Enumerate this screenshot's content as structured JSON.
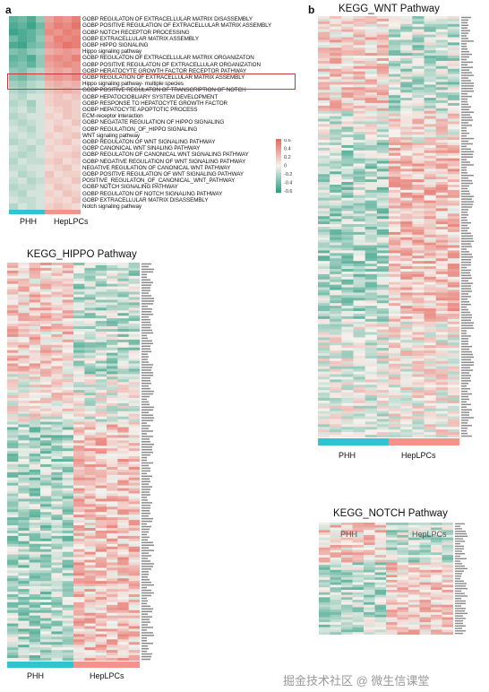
{
  "panel_a_letter": "a",
  "panel_b_letter": "b",
  "watermark": "掘金技术社区 @ 微生信课堂",
  "colors": {
    "low": "#2e9e82",
    "mid": "#f5f2ee",
    "high": "#e5695f",
    "phh": "#2ec4d1",
    "hep": "#f2948a",
    "highlight": "#c23a3a"
  },
  "chart_data": [
    {
      "type": "heatmap",
      "title": "",
      "groups": [
        "PHH",
        "HepLPCs"
      ],
      "colorbar": {
        "ticks": [
          "0.6",
          "0.4",
          "0.2",
          "0",
          "-0.2",
          "-0.4",
          "-0.6"
        ],
        "range": [
          -0.6,
          0.6
        ]
      },
      "highlighted_rows": [
        9,
        10
      ],
      "rows": [
        "GOBP REGULATON OF EXTRACELLULAR MATRIX DISASSEMBLY",
        "GOBP POSITIVE REGULATION OF EXTRACELLULAR MATRIX ASSEMBLY",
        "GOBP NOTCH RECEPTOR PROCESSING",
        "GOBP EXTRACELLULAR MATRIX ASSEMBLY",
        "GOBP HIPPO SIGNALING",
        "Hippo signaling pathway",
        "GOBP REGULATON OF EXTRACELLULAR MATRIX ORGANIZATON",
        "GOBP POSITIVE REGULATON OF EXTRACELLULAR ORGANIZATION",
        "GOBP HERATOCYTE GROWTH FACTOR RECEPTOR PATHWAY",
        "GOBP REGULATION OF EXTRACELLULAR MATRIX ASSEMBLY",
        "Hippo signaling pathway- multiple species",
        "GOBP POSITIVE REGULATON OF TRANSCRIPTION OF NOTCH",
        "GOBP HEPATOCIOBLIARY SYSTEM DEVELOPMENT",
        "GOBP RESPONSE TO HEPATOCYTE GROWTH FACTOR",
        "GOBP HEPATOCYTE APOPTOTIC PROCESS",
        "ECM-receptor interaction",
        "GOBP NEGATATE REGULATION OF HIPPO SIGNALING",
        "GOBP REGULATION_OF_HIPPO SIGNALING",
        "WNT signaling pathway",
        "GOBP REGULATON OF WNT SIGNALING PATHWAY",
        "GOBP CANONICAL WNT SINALING PATHWAY",
        "GOBP REGULATON OF CANONICAL WNT SIGNALING PATHWAY",
        "GOBP NEGATIVE REGULATION OF WNT SIGNALING PATHWAY",
        "NEGATIVE REGULATION OF CANONICAL WNT PATHWAY",
        "GOBP POSITIVE REGULATION OF WNT SIGNALING PATHWAY",
        "POSITIVE_REGULATON_OF_CANONICAL_WNT_PATHWAY",
        "GOBP NOTCH SIGNALING PATHWAY",
        "GOBP REGULATON OF NOTCH SIGNALING PATHWAY",
        "GOBP EXTRACELLULAR MATRIX DISASSEMBLY",
        "Notch signaling pathway"
      ],
      "values": [
        [
          -0.45,
          -0.4,
          -0.5,
          -0.3,
          0.35,
          0.45,
          0.4,
          0.5
        ],
        [
          -0.5,
          -0.45,
          -0.55,
          -0.4,
          0.4,
          0.5,
          0.45,
          0.55
        ],
        [
          -0.55,
          -0.5,
          -0.45,
          -0.35,
          0.45,
          0.4,
          0.5,
          0.45
        ],
        [
          -0.4,
          -0.5,
          -0.45,
          -0.3,
          0.35,
          0.5,
          0.45,
          0.5
        ],
        [
          -0.5,
          -0.55,
          -0.4,
          -0.35,
          0.4,
          0.45,
          0.55,
          0.5
        ],
        [
          -0.35,
          -0.4,
          -0.3,
          -0.25,
          0.3,
          0.35,
          0.4,
          0.35
        ],
        [
          -0.45,
          -0.4,
          -0.5,
          -0.3,
          0.4,
          0.45,
          0.4,
          0.5
        ],
        [
          -0.4,
          -0.35,
          -0.45,
          -0.3,
          0.35,
          0.4,
          0.45,
          0.4
        ],
        [
          -0.3,
          -0.35,
          -0.25,
          -0.2,
          0.3,
          0.35,
          0.3,
          0.4
        ],
        [
          -0.35,
          -0.4,
          -0.3,
          -0.25,
          0.35,
          0.4,
          0.35,
          0.45
        ],
        [
          -0.25,
          -0.3,
          -0.2,
          -0.15,
          0.25,
          0.3,
          0.25,
          0.3
        ],
        [
          -0.2,
          -0.25,
          -0.2,
          -0.15,
          0.2,
          0.25,
          0.3,
          0.25
        ],
        [
          -0.15,
          -0.2,
          -0.1,
          -0.1,
          0.15,
          0.2,
          0.15,
          0.2
        ],
        [
          -0.2,
          -0.15,
          -0.25,
          -0.1,
          0.15,
          0.2,
          0.2,
          0.15
        ],
        [
          -0.15,
          -0.1,
          -0.2,
          -0.1,
          0.1,
          0.15,
          0.2,
          0.15
        ],
        [
          -0.2,
          -0.15,
          -0.1,
          -0.1,
          0.15,
          0.1,
          0.2,
          0.15
        ],
        [
          -0.15,
          -0.2,
          -0.15,
          -0.1,
          0.1,
          0.15,
          0.1,
          0.2
        ],
        [
          -0.1,
          -0.15,
          -0.2,
          -0.1,
          0.1,
          0.2,
          0.15,
          0.1
        ],
        [
          -0.15,
          -0.1,
          -0.15,
          -0.1,
          0.15,
          0.1,
          0.15,
          0.2
        ],
        [
          -0.2,
          -0.15,
          -0.1,
          -0.15,
          0.1,
          0.15,
          0.2,
          0.1
        ],
        [
          -0.1,
          -0.15,
          -0.2,
          -0.1,
          0.15,
          0.1,
          0.1,
          0.15
        ],
        [
          -0.15,
          -0.2,
          -0.15,
          -0.1,
          0.1,
          0.15,
          0.15,
          0.2
        ],
        [
          -0.2,
          -0.1,
          -0.15,
          -0.15,
          0.15,
          0.2,
          0.1,
          0.15
        ],
        [
          -0.15,
          -0.15,
          -0.1,
          -0.1,
          0.1,
          0.15,
          0.2,
          0.1
        ],
        [
          -0.1,
          -0.2,
          -0.15,
          -0.1,
          0.2,
          0.1,
          0.15,
          0.15
        ],
        [
          -0.15,
          -0.1,
          -0.2,
          -0.15,
          0.15,
          0.15,
          0.1,
          0.2
        ],
        [
          -0.2,
          -0.15,
          -0.15,
          -0.1,
          0.1,
          0.2,
          0.15,
          0.1
        ],
        [
          -0.15,
          -0.2,
          -0.1,
          -0.1,
          0.15,
          0.1,
          0.2,
          0.15
        ],
        [
          -0.1,
          -0.15,
          -0.15,
          -0.1,
          0.1,
          0.15,
          0.1,
          0.2
        ],
        [
          -0.2,
          -0.1,
          -0.15,
          -0.1,
          0.15,
          0.2,
          0.15,
          0.1
        ]
      ]
    },
    {
      "type": "heatmap",
      "title": "KEGG_HIPPO Pathway",
      "groups": [
        "PHH",
        "HepLPCs"
      ]
    },
    {
      "type": "heatmap",
      "title": "KEGG_WNT Pathway",
      "groups": [
        "PHH",
        "HepLPCs"
      ]
    },
    {
      "type": "heatmap",
      "title": "KEGG_NOTCH Pathway",
      "groups": [
        "PHH",
        "HepLPCs"
      ]
    }
  ]
}
